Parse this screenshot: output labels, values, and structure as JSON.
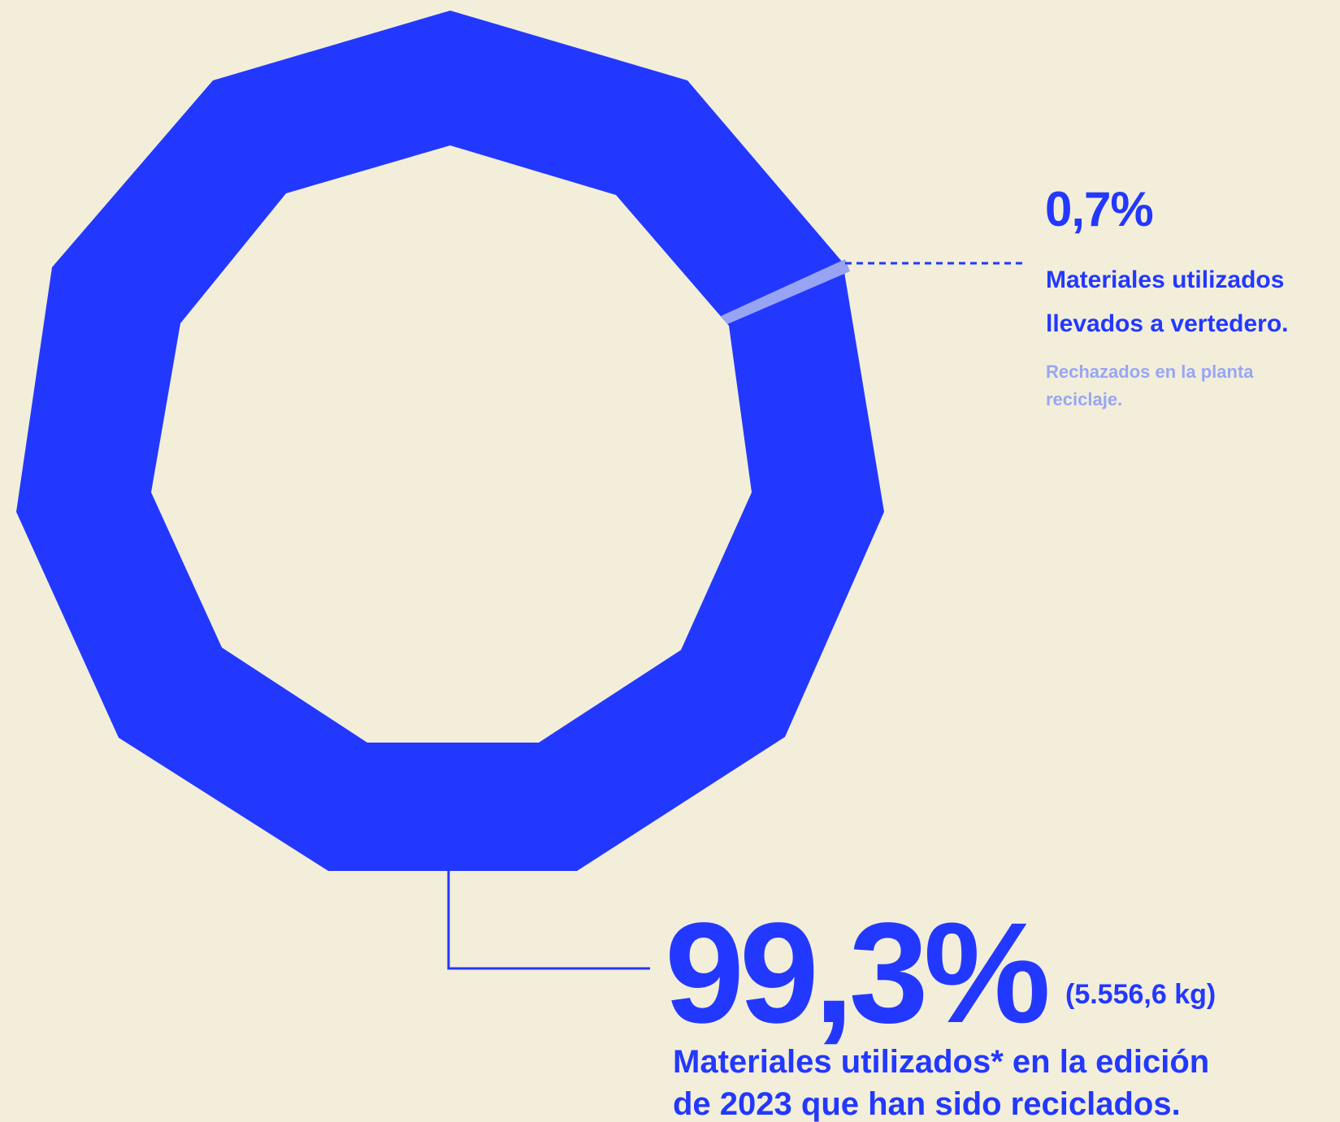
{
  "colors": {
    "background": "#f2eeda",
    "recycled": "#2338fe",
    "landfill": "#97a4f4",
    "note": "#98a6f4",
    "text": "#2338fe"
  },
  "chart_data": {
    "type": "pie",
    "shape": "hendecagon ring (donut)",
    "series": [
      {
        "percent": 0.7,
        "value_label": "0,7%",
        "label_line1": "Materiales utilizados",
        "label_line2": "llevados a vertedero.",
        "note_line1": "Rechazados en la planta",
        "note_line2": "reciclaje."
      },
      {
        "percent": 99.3,
        "value_label": "99,3%",
        "weight_label": "(5.556,6 kg)",
        "label_line1": "Materiales utilizados* en la edición",
        "label_line2": "de 2023 que han sido reciclados."
      }
    ]
  },
  "annotations": {
    "landfill": {
      "value": "0,7%",
      "line1": "Materiales utilizados",
      "line2": "llevados a vertedero.",
      "note1": "Rechazados en la planta",
      "note2": "reciclaje."
    },
    "recycled": {
      "value": "99,3%",
      "weight": "(5.556,6 kg)",
      "line1": "Materiales utilizados* en la edición",
      "line2": "de 2023 que han sido reciclados."
    }
  }
}
